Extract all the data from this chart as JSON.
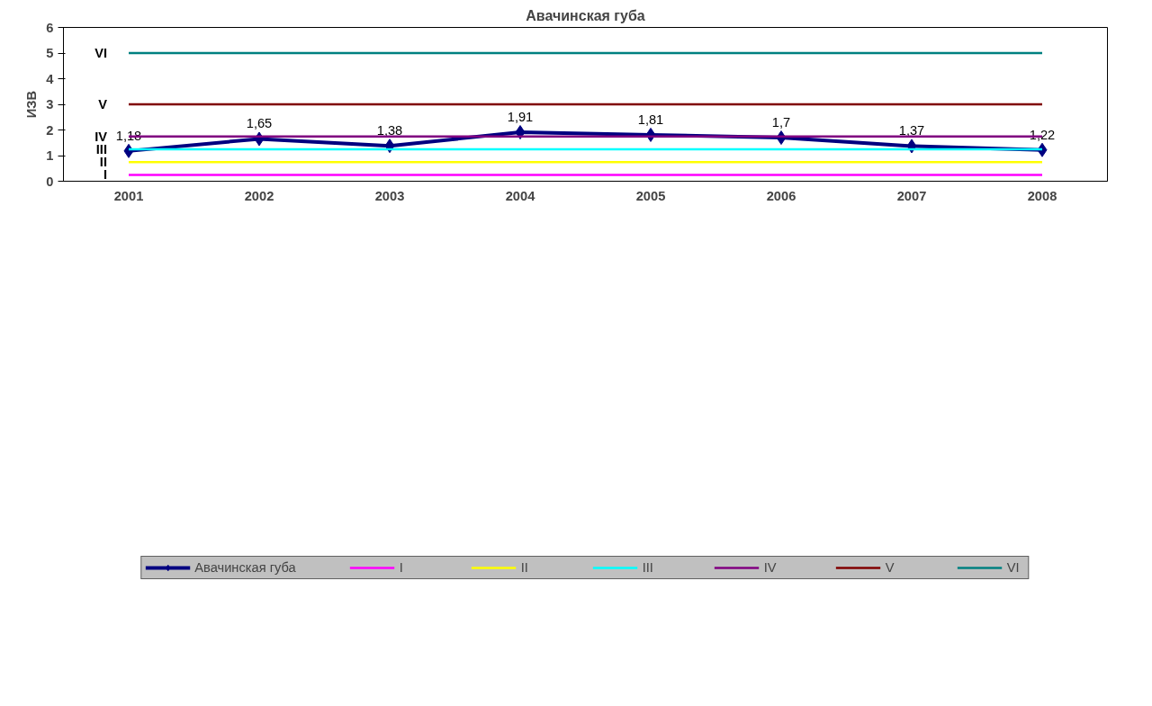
{
  "chart_data": {
    "type": "line",
    "title": "Авачинская губа",
    "ylabel": "ИЗВ",
    "categories": [
      "2001",
      "2002",
      "2003",
      "2004",
      "2005",
      "2006",
      "2007",
      "2008"
    ],
    "ylim": [
      0,
      6
    ],
    "yticks": [
      0,
      1,
      2,
      3,
      4,
      5,
      6
    ],
    "grid": false,
    "legend": "bottom",
    "series": [
      {
        "name": "Авачинская губа",
        "color": "#000080",
        "values": [
          1.18,
          1.65,
          1.38,
          1.91,
          1.81,
          1.7,
          1.37,
          1.22
        ],
        "marker": "diamond",
        "value_labels": [
          "1,18",
          "1,65",
          "1,38",
          "1,91",
          "1,81",
          "1,7",
          "1,37",
          "1,22"
        ]
      },
      {
        "name": "I",
        "color": "#ff00ff",
        "values": [
          0.25,
          0.25,
          0.25,
          0.25,
          0.25,
          0.25,
          0.25,
          0.25
        ],
        "marker": "none"
      },
      {
        "name": "II",
        "color": "#ffff00",
        "values": [
          0.75,
          0.75,
          0.75,
          0.75,
          0.75,
          0.75,
          0.75,
          0.75
        ],
        "marker": "none"
      },
      {
        "name": "III",
        "color": "#00ffff",
        "values": [
          1.25,
          1.25,
          1.25,
          1.25,
          1.25,
          1.25,
          1.25,
          1.25
        ],
        "marker": "none"
      },
      {
        "name": "IV",
        "color": "#800080",
        "values": [
          1.75,
          1.75,
          1.75,
          1.75,
          1.75,
          1.75,
          1.75,
          1.75
        ],
        "marker": "none"
      },
      {
        "name": "V",
        "color": "#800000",
        "values": [
          3,
          3,
          3,
          3,
          3,
          3,
          3,
          3
        ],
        "marker": "none"
      },
      {
        "name": "VI",
        "color": "#008080",
        "values": [
          5,
          5,
          5,
          5,
          5,
          5,
          5,
          5
        ],
        "marker": "none"
      }
    ]
  }
}
